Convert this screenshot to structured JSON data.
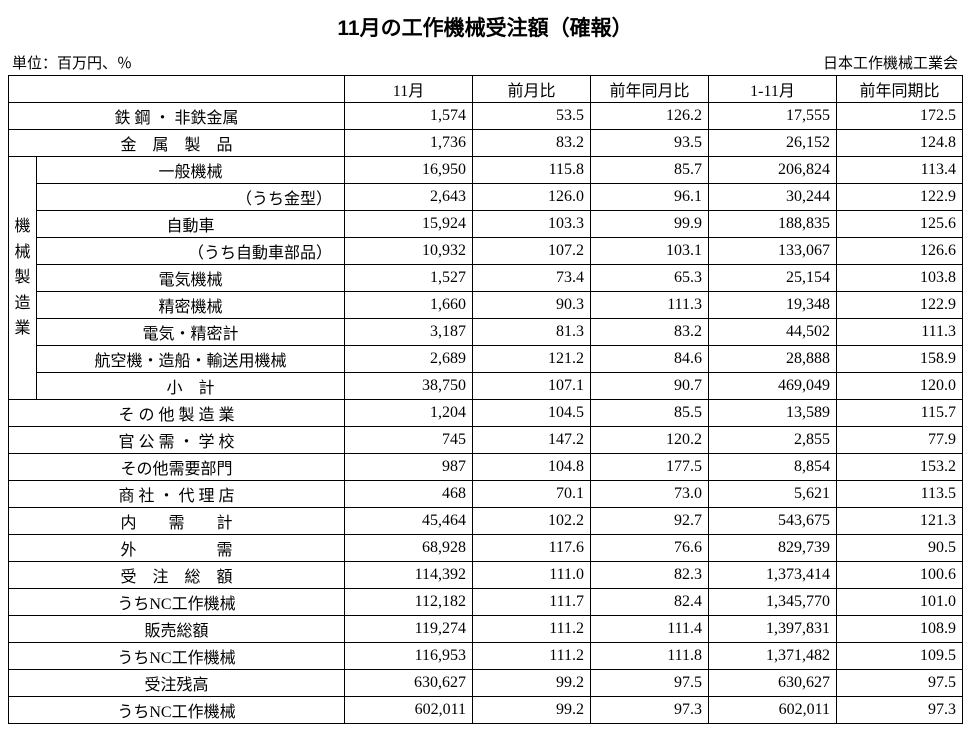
{
  "title": "11月の工作機械受注額（確報）",
  "unit_label": "単位：百万円、％",
  "source_label": "日本工作機械工業会",
  "columns": [
    "11月",
    "前月比",
    "前年同月比",
    "1-11月",
    "前年同期比"
  ],
  "vcat_label": "機械製造業",
  "rows": [
    {
      "label": "鉄 鋼 ・ 非鉄金属",
      "span2": true,
      "vals": [
        "1,574",
        "53.5",
        "126.2",
        "17,555",
        "172.5"
      ]
    },
    {
      "label": "金　属　製　品",
      "span2": true,
      "spread": true,
      "vals": [
        "1,736",
        "83.2",
        "93.5",
        "26,152",
        "124.8"
      ]
    },
    {
      "label": "一般機械",
      "grp": true,
      "vals": [
        "16,950",
        "115.8",
        "85.7",
        "206,824",
        "113.4"
      ]
    },
    {
      "label": "（うち金型）",
      "grp": true,
      "sub": true,
      "vals": [
        "2,643",
        "126.0",
        "96.1",
        "30,244",
        "122.9"
      ]
    },
    {
      "label": "自動車",
      "grp": true,
      "vals": [
        "15,924",
        "103.3",
        "99.9",
        "188,835",
        "125.6"
      ]
    },
    {
      "label": "（うち自動車部品）",
      "grp": true,
      "sub": true,
      "vals": [
        "10,932",
        "107.2",
        "103.1",
        "133,067",
        "126.6"
      ]
    },
    {
      "label": "電気機械",
      "grp": true,
      "vals": [
        "1,527",
        "73.4",
        "65.3",
        "25,154",
        "103.8"
      ]
    },
    {
      "label": "精密機械",
      "grp": true,
      "vals": [
        "1,660",
        "90.3",
        "111.3",
        "19,348",
        "122.9"
      ]
    },
    {
      "label": "電気・精密計",
      "grp": true,
      "vals": [
        "3,187",
        "81.3",
        "83.2",
        "44,502",
        "111.3"
      ]
    },
    {
      "label": "航空機・造船・輸送用機械",
      "grp": true,
      "vals": [
        "2,689",
        "121.2",
        "84.6",
        "28,888",
        "158.9"
      ]
    },
    {
      "label": "小　計",
      "grp": true,
      "vals": [
        "38,750",
        "107.1",
        "90.7",
        "469,049",
        "120.0"
      ]
    },
    {
      "label": "そ の 他 製 造 業",
      "span2": true,
      "vals": [
        "1,204",
        "104.5",
        "85.5",
        "13,589",
        "115.7"
      ]
    },
    {
      "label": "官 公 需 ・ 学 校",
      "span2": true,
      "vals": [
        "745",
        "147.2",
        "120.2",
        "2,855",
        "77.9"
      ]
    },
    {
      "label": "その他需要部門",
      "span2": true,
      "vals": [
        "987",
        "104.8",
        "177.5",
        "8,854",
        "153.2"
      ]
    },
    {
      "label": "商 社 ・ 代 理 店",
      "span2": true,
      "vals": [
        "468",
        "70.1",
        "73.0",
        "5,621",
        "113.5"
      ]
    },
    {
      "label": "内　　需　　計",
      "span2": true,
      "spread": true,
      "vals": [
        "45,464",
        "102.2",
        "92.7",
        "543,675",
        "121.3"
      ]
    },
    {
      "label": "外　　　　　需",
      "span2": true,
      "spread": true,
      "vals": [
        "68,928",
        "117.6",
        "76.6",
        "829,739",
        "90.5"
      ]
    },
    {
      "label": "受　注　総　額",
      "span2": true,
      "spread": true,
      "vals": [
        "114,392",
        "111.0",
        "82.3",
        "1,373,414",
        "100.6"
      ]
    },
    {
      "label": "うちNC工作機械",
      "span2": true,
      "vals": [
        "112,182",
        "111.7",
        "82.4",
        "1,345,770",
        "101.0"
      ]
    },
    {
      "label": "販売総額",
      "span2": true,
      "vals": [
        "119,274",
        "111.2",
        "111.4",
        "1,397,831",
        "108.9"
      ]
    },
    {
      "label": "うちNC工作機械",
      "span2": true,
      "vals": [
        "116,953",
        "111.2",
        "111.8",
        "1,371,482",
        "109.5"
      ]
    },
    {
      "label": "受注残高",
      "span2": true,
      "vals": [
        "630,627",
        "99.2",
        "97.5",
        "630,627",
        "97.5"
      ]
    },
    {
      "label": "うちNC工作機械",
      "span2": true,
      "vals": [
        "602,011",
        "99.2",
        "97.3",
        "602,011",
        "97.3"
      ]
    }
  ]
}
